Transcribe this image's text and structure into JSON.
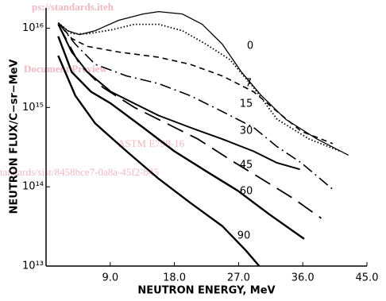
{
  "chart_data": {
    "type": "line",
    "xlabel": "NEUTRON ENERGY, MeV",
    "ylabel": "NEUTRON FLUX/C−sr−MeV",
    "xlim": [
      0,
      45
    ],
    "xticks": [
      {
        "value": 9,
        "label": "9.0"
      },
      {
        "value": 18,
        "label": "18.0"
      },
      {
        "value": 27,
        "label": "27.0"
      },
      {
        "value": 36,
        "label": "36.0"
      },
      {
        "value": 45,
        "label": "45.0"
      }
    ],
    "ylim": [
      10000000000000.0,
      1.8e+16
    ],
    "yscale": "log",
    "yticks": [
      {
        "value": 10000000000000.0,
        "label": "10¹³"
      },
      {
        "value": 100000000000000.0,
        "label": "10¹⁴"
      },
      {
        "value": 1000000000000000.0,
        "label": "10¹⁵"
      },
      {
        "value": 1e+16,
        "label": "10¹⁶"
      }
    ],
    "color": "#000000",
    "series": [
      {
        "style": "solid",
        "width": 1.3,
        "x": [
          1.7,
          3.0,
          4.7,
          6.9,
          10.2,
          13.6,
          15.8,
          19.1,
          21.9,
          24.7,
          27.4,
          30.2,
          33.6,
          38.0,
          42.4
        ],
        "values": [
          1.17e+16,
          9300000000000000.0,
          8300000000000000.0,
          9300000000000000.0,
          1.26e+16,
          1.51e+16,
          1.62e+16,
          1.51e+16,
          1.12e+16,
          6300000000000000.0,
          2800000000000000.0,
          1410000000000000.0,
          710000000000000.0,
          400000000000000.0,
          250000000000000.0
        ]
      },
      {
        "name": "0",
        "style": "dotted",
        "width": 1.8,
        "x": [
          1.7,
          3.6,
          5.8,
          9.1,
          12.4,
          15.8,
          19.1,
          22.4,
          25.8,
          29.1,
          32.4,
          36.9,
          41.3
        ],
        "values": [
          1.17e+16,
          8500000000000000.0,
          8500000000000000.0,
          9500000000000000.0,
          1.12e+16,
          1.12e+16,
          9300000000000000.0,
          6300000000000000.0,
          4000000000000000.0,
          1780000000000000.0,
          710000000000000.0,
          400000000000000.0,
          280000000000000.0
        ]
      },
      {
        "name": "7",
        "style": "dashed",
        "width": 1.6,
        "x": [
          1.7,
          3.6,
          5.8,
          10.2,
          15.8,
          20.2,
          24.7,
          29.1,
          32.4,
          35.8,
          40.2
        ],
        "values": [
          1.17e+16,
          7400000000000000.0,
          5900000000000000.0,
          5000000000000000.0,
          4300000000000000.0,
          3500000000000000.0,
          2500000000000000.0,
          1580000000000000.0,
          890000000000000.0,
          500000000000000.0,
          350000000000000.0
        ]
      },
      {
        "name": "15",
        "style": "dashdot",
        "width": 1.6,
        "x": [
          1.7,
          4.1,
          6.9,
          11.3,
          15.8,
          20.2,
          24.7,
          29.1,
          32.4,
          35.8,
          40.2
        ],
        "values": [
          1.17e+16,
          6300000000000000.0,
          3500000000000000.0,
          2500000000000000.0,
          2000000000000000.0,
          1410000000000000.0,
          890000000000000.0,
          560000000000000.0,
          320000000000000.0,
          200000000000000.0,
          93000000000000.0
        ]
      },
      {
        "name": "30",
        "style": "solid",
        "width": 2,
        "x": [
          1.7,
          3.6,
          5.8,
          9.1,
          12.4,
          15.8,
          20.2,
          24.7,
          29.1,
          32.4,
          35.6
        ],
        "values": [
          1.12e+16,
          5000000000000000.0,
          2800000000000000.0,
          1580000000000000.0,
          1120000000000000.0,
          790000000000000.0,
          560000000000000.0,
          400000000000000.0,
          280000000000000.0,
          200000000000000.0,
          166000000000000.0
        ]
      },
      {
        "name": "45",
        "style": "longdash",
        "width": 1.8,
        "x": [
          1.7,
          4.7,
          8.0,
          12.4,
          16.9,
          21.3,
          25.8,
          30.2,
          34.7,
          38.6
        ],
        "values": [
          1.12e+16,
          3500000000000000.0,
          1780000000000000.0,
          1000000000000000.0,
          630000000000000.0,
          400000000000000.0,
          220000000000000.0,
          126000000000000.0,
          71000000000000.0,
          40000000000000.0
        ]
      },
      {
        "name": "60",
        "style": "solid",
        "width": 2.4,
        "x": [
          1.7,
          3.6,
          6.3,
          9.1,
          13.6,
          18.0,
          22.4,
          26.9,
          31.3,
          36.2
        ],
        "values": [
          7900000000000000.0,
          2800000000000000.0,
          1580000000000000.0,
          1120000000000000.0,
          560000000000000.0,
          280000000000000.0,
          158000000000000.0,
          89000000000000.0,
          45000000000000.0,
          22000000000000.0
        ]
      },
      {
        "name": "90",
        "style": "solid",
        "width": 2.4,
        "x": [
          1.7,
          4.1,
          6.9,
          11.3,
          15.8,
          20.2,
          24.7,
          28.0,
          29.9
        ],
        "values": [
          4500000000000000.0,
          1410000000000000.0,
          630000000000000.0,
          280000000000000.0,
          126000000000000.0,
          63000000000000.0,
          32000000000000.0,
          15800000000000.0,
          10000000000000.0
        ]
      }
    ],
    "watermark": [
      "ps://standards.iteh",
      "Document Preview",
      "ASTM E798-16",
      "tandards/sist/8458bce7-0a8a-45f2-b45"
    ]
  }
}
